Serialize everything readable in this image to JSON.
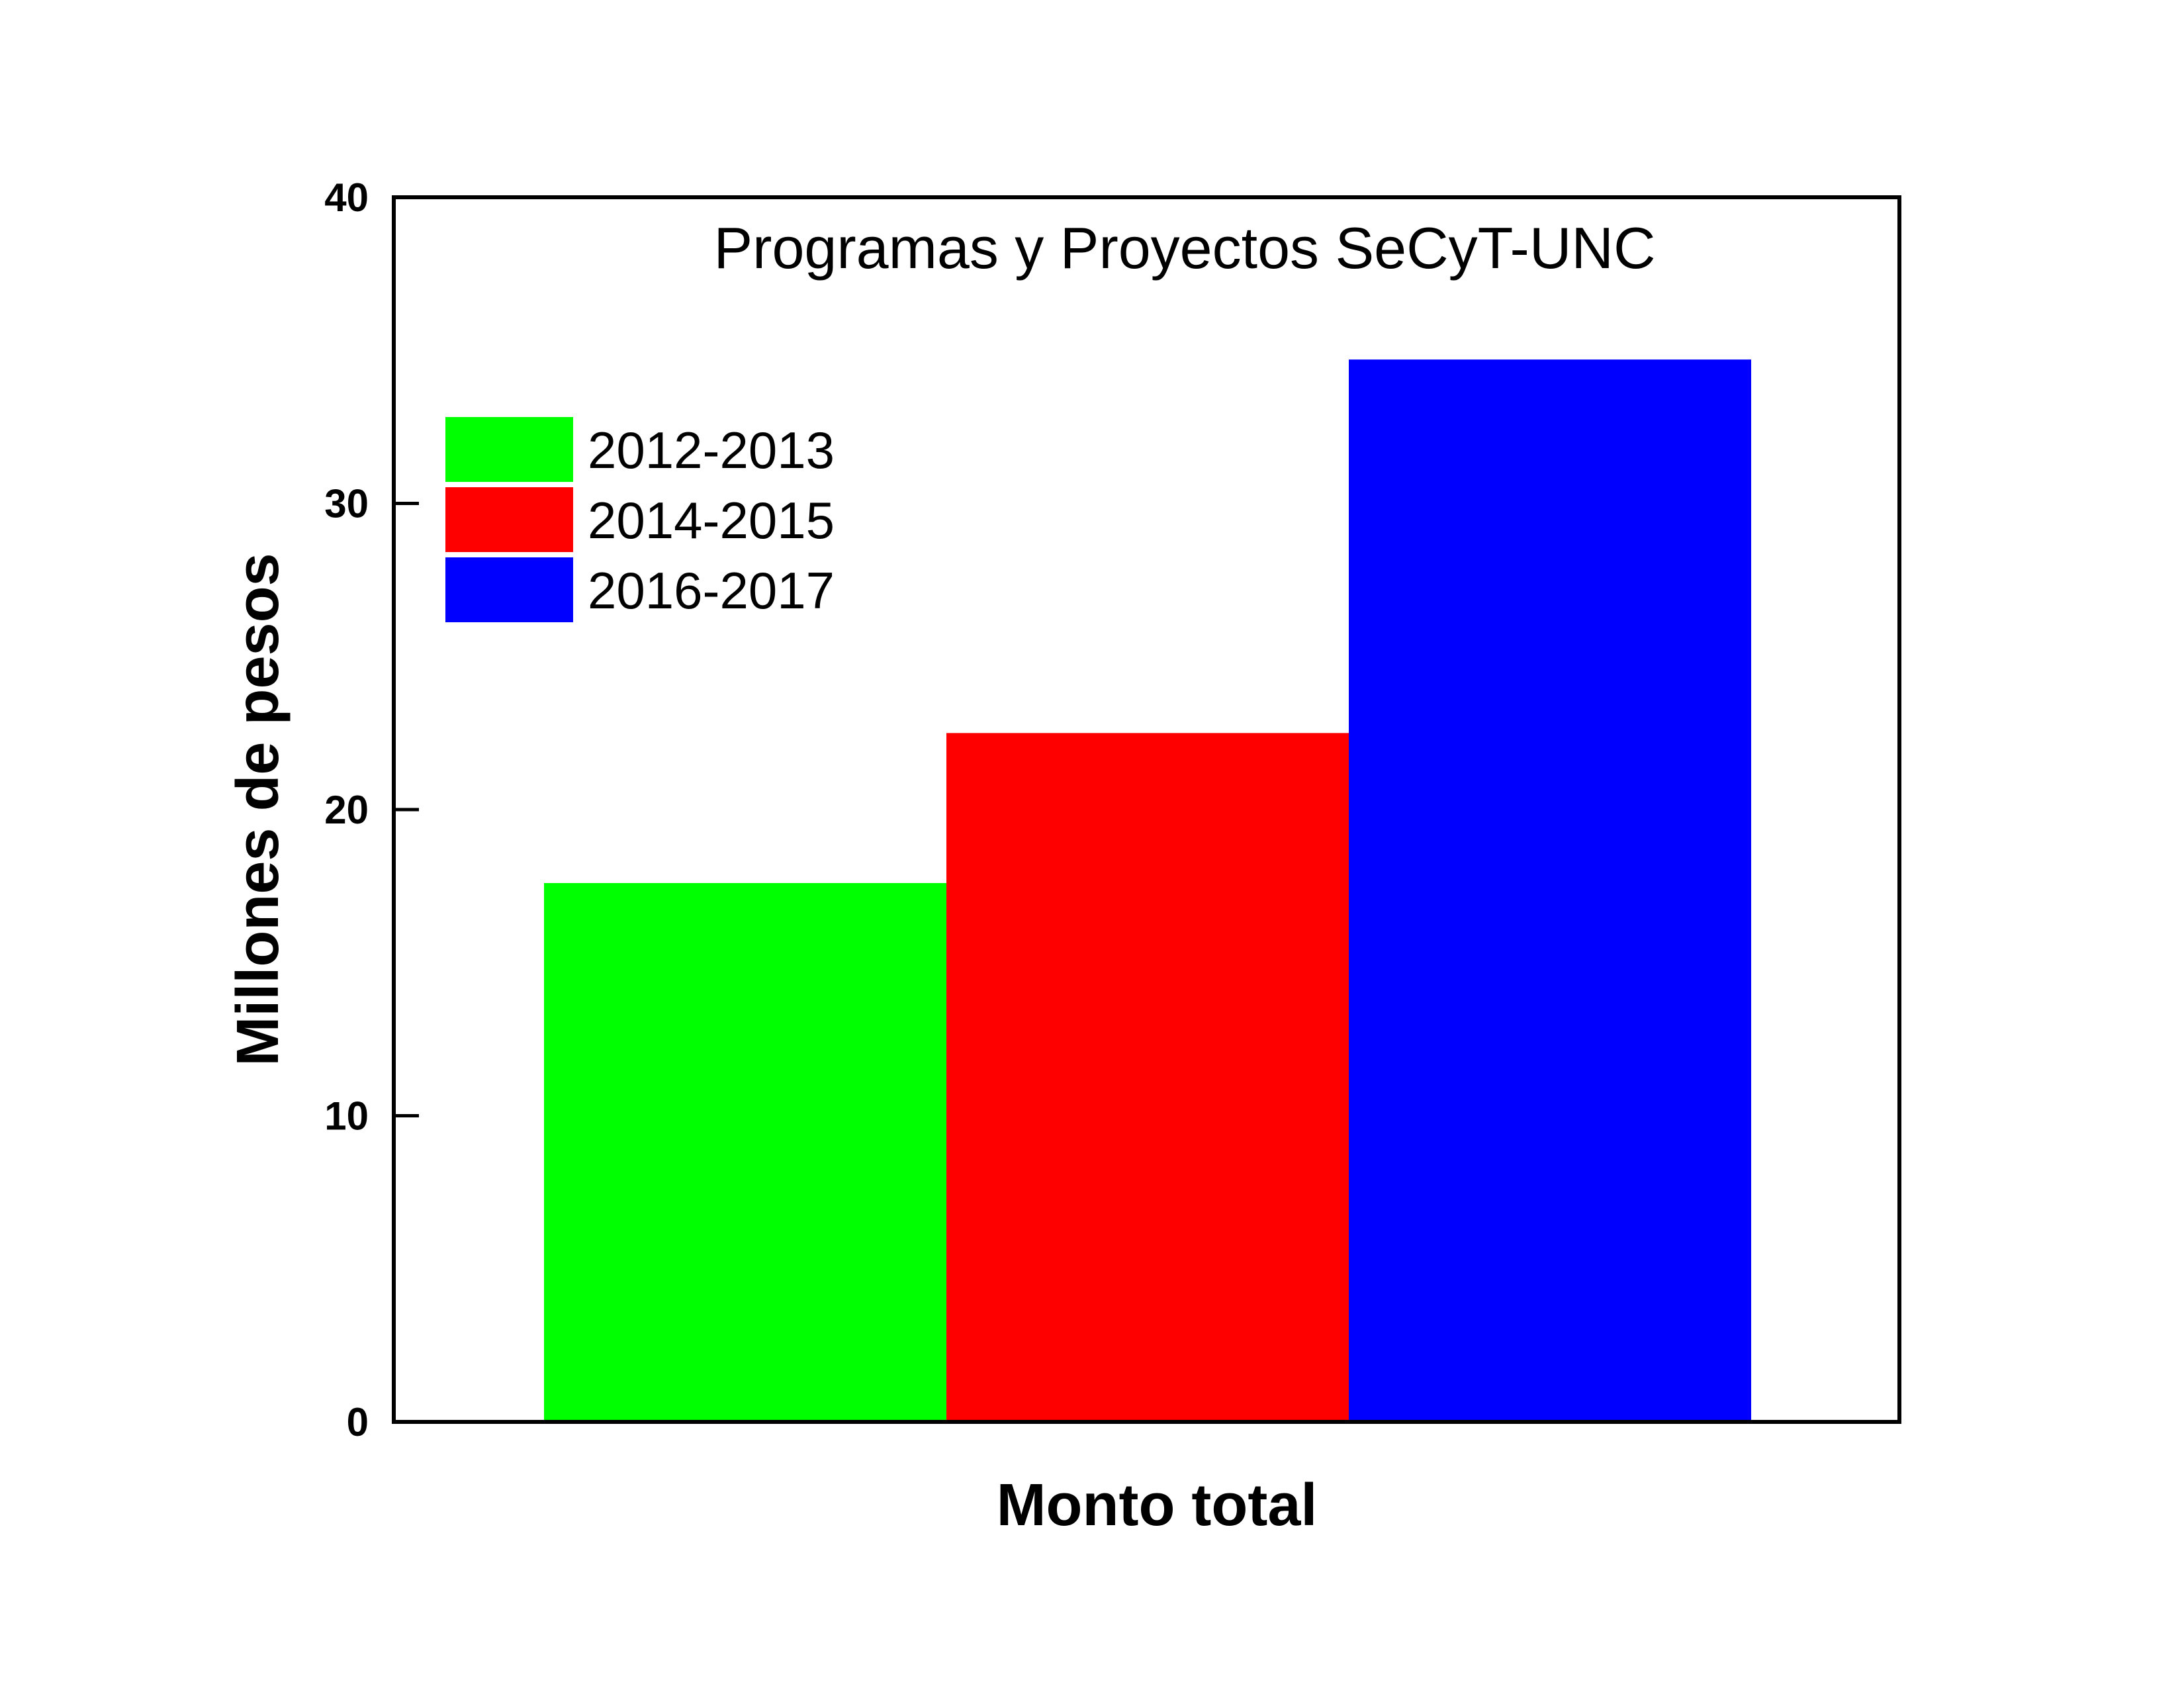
{
  "chart_data": {
    "type": "bar",
    "title": "Programas y Proyectos SeCyT-UNC",
    "xlabel": "Monto total",
    "ylabel": "Millones de pesos",
    "categories": [
      "Monto total"
    ],
    "ylim": [
      0,
      40
    ],
    "yticks": [
      0,
      10,
      20,
      30,
      40
    ],
    "grid": false,
    "legend_position": "top-left",
    "series": [
      {
        "name": "2012-2013",
        "values": [
          17.6
        ],
        "color": "#00ff00"
      },
      {
        "name": "2014-2015",
        "values": [
          22.5
        ],
        "color": "#ff0000"
      },
      {
        "name": "2016-2017",
        "values": [
          34.7
        ],
        "color": "#0000ff"
      }
    ]
  }
}
